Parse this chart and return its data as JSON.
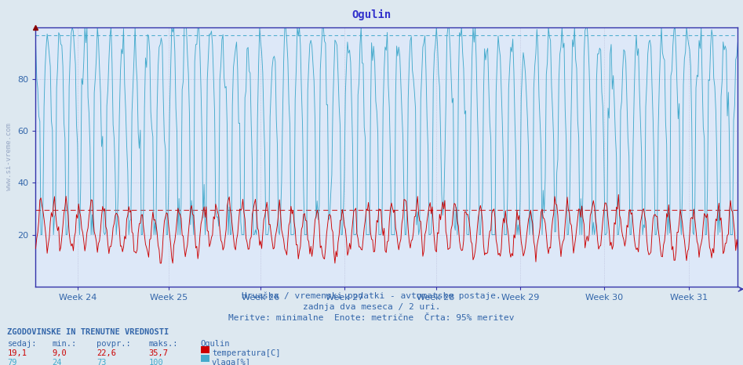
{
  "title": "Ogulin",
  "title_color": "#3333cc",
  "bg_color": "#dde8f0",
  "plot_bg_color": "#dde8f8",
  "grid_color": "#aaaacc",
  "ylim": [
    0,
    100
  ],
  "yticks": [
    20,
    40,
    60,
    80
  ],
  "x_week_labels": [
    "Week 24",
    "Week 25",
    "Week 26",
    "Week 27",
    "Week 28",
    "Week 29",
    "Week 30",
    "Week 31"
  ],
  "x_week_positions": [
    0.06,
    0.19,
    0.32,
    0.44,
    0.57,
    0.69,
    0.81,
    0.93
  ],
  "temp_color": "#cc0000",
  "hum_color": "#44aacc",
  "temp_95pct": 29.5,
  "hum_95pct": 97.0,
  "border_color": "#3333aa",
  "footer_line1": "Hrvaška / vremenski podatki - avtomatske postaje.",
  "footer_line2": "zadnja dva meseca / 2 uri.",
  "footer_line3": "Meritve: minimalne  Enote: metrične  Črta: 95% meritev",
  "table_header": "ZGODOVINSKE IN TRENUTNE VREDNOSTI",
  "col_headers": [
    "sedaj:",
    "min.:",
    "povpr.:",
    "maks.:"
  ],
  "temp_values": [
    "19,1",
    "9,0",
    "22,6",
    "35,7"
  ],
  "hum_values": [
    "79",
    "24",
    "73",
    "100"
  ],
  "temp_label": "temperatura[C]",
  "hum_label": "vlaga[%]",
  "station_label": "Ogulin",
  "text_color": "#3366aa",
  "weeks_count": 8,
  "n_points": 672,
  "temp_mean": 22.0,
  "temp_amp": 8.5,
  "hum_mean": 72.0,
  "hum_amp": 25.0
}
